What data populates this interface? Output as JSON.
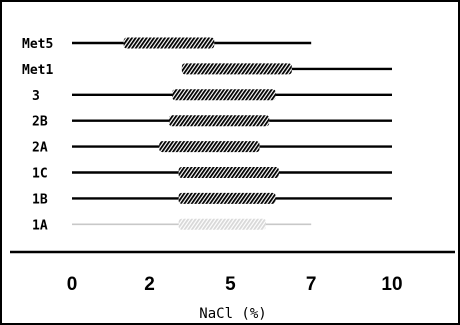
{
  "chart_data": {
    "type": "range",
    "xlabel": "NaCl (%)",
    "xlim": [
      -0.5,
      11.5
    ],
    "xticks": [
      {
        "value": 0,
        "label": "0"
      },
      {
        "value": 2.4,
        "label": "2"
      },
      {
        "value": 4.9,
        "label": "5"
      },
      {
        "value": 7.4,
        "label": "7"
      },
      {
        "value": 9.9,
        "label": "10"
      }
    ],
    "rows": [
      {
        "label": "Met5",
        "line": [
          0,
          7.4
        ],
        "bar": [
          1.6,
          4.4
        ],
        "faint": false
      },
      {
        "label": "Met1",
        "line": [
          3.4,
          9.9
        ],
        "bar": [
          3.4,
          6.8
        ],
        "faint": false
      },
      {
        "label": "3",
        "line": [
          0,
          9.9
        ],
        "bar": [
          3.1,
          6.3
        ],
        "faint": false
      },
      {
        "label": "2B",
        "line": [
          0,
          9.9
        ],
        "bar": [
          3.0,
          6.1
        ],
        "faint": false
      },
      {
        "label": "2A",
        "line": [
          0,
          9.9
        ],
        "bar": [
          2.7,
          5.8
        ],
        "faint": false
      },
      {
        "label": "1C",
        "line": [
          0,
          9.9
        ],
        "bar": [
          3.3,
          6.4
        ],
        "faint": false
      },
      {
        "label": "1B",
        "line": [
          0,
          9.9
        ],
        "bar": [
          3.3,
          6.3
        ],
        "faint": false
      },
      {
        "label": "1A",
        "line": [
          0,
          7.4
        ],
        "bar": [
          3.3,
          6.0
        ],
        "faint": true
      }
    ]
  }
}
